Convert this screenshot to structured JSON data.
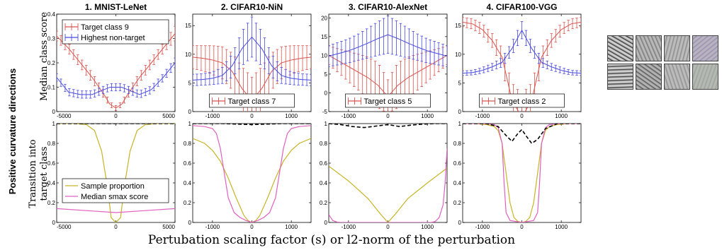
{
  "side_label": "Positive curvature directions",
  "top_ylabel": "Median class score",
  "bottom_ylabel_line1": "Transition into",
  "bottom_ylabel_line2": "target class",
  "xlabel": "Pertubation scaling factor (s) or l2-norm of the perturbation",
  "colors": {
    "target": "#d9534f",
    "nontarget": "#4a4ae0",
    "sample": "#c8b428",
    "smax": "#e060c0",
    "black": "#000000"
  },
  "thumbnails": [
    {
      "name": "mnist-direction-1",
      "bg": "#cfcfcf",
      "tone": "#333333"
    },
    {
      "name": "cifar10-nin-direction-1",
      "bg": "#b9b9b9",
      "tone": "#777777"
    },
    {
      "name": "cifar10-alexnet-direction-1",
      "bg": "#bdbdbd",
      "tone": "#8a8a8a"
    },
    {
      "name": "cifar100-vgg-direction-1",
      "bg": "#b8b4c0",
      "tone": "#9a8fb0"
    },
    {
      "name": "mnist-direction-2",
      "bg": "#cfcfcf",
      "tone": "#3a3a3a"
    },
    {
      "name": "cifar10-nin-direction-2",
      "bg": "#b3b3b3",
      "tone": "#555555"
    },
    {
      "name": "cifar10-alexnet-direction-2",
      "bg": "#bcbcbc",
      "tone": "#8e8e8e"
    },
    {
      "name": "cifar100-vgg-direction-2",
      "bg": "#b6b8b4",
      "tone": "#9aa59a"
    }
  ],
  "chart_data": [
    {
      "type": "line",
      "panel": "top",
      "title": "1. MNIST-LeNet",
      "xlim": [
        -5000,
        5000
      ],
      "ylim": [
        0,
        0.4
      ],
      "xticks": [
        "-5000",
        "0",
        "5000"
      ],
      "yticks": [
        "0",
        "0.1",
        "0.2",
        "0.3",
        "0.4"
      ],
      "legend": {
        "entries": [
          "Target class 9",
          "Highest non-target"
        ],
        "placement": "top-left"
      },
      "x": [
        -5000,
        -4000,
        -3000,
        -2000,
        -1000,
        -500,
        0,
        500,
        1000,
        2000,
        3000,
        4000,
        5000
      ],
      "series": [
        {
          "name": "Target class 9",
          "role": "target",
          "mean": [
            0.31,
            0.26,
            0.2,
            0.14,
            0.07,
            0.03,
            0.015,
            0.03,
            0.07,
            0.14,
            0.2,
            0.26,
            0.32
          ],
          "err": [
            0.02,
            0.02,
            0.02,
            0.02,
            0.015,
            0.01,
            0.01,
            0.01,
            0.015,
            0.02,
            0.02,
            0.02,
            0.03
          ]
        },
        {
          "name": "Highest non-target",
          "role": "nontarget",
          "mean": [
            0.14,
            0.08,
            0.07,
            0.07,
            0.09,
            0.1,
            0.1,
            0.1,
            0.09,
            0.07,
            0.09,
            0.14,
            0.2
          ],
          "err": [
            0.015,
            0.015,
            0.015,
            0.015,
            0.015,
            0.015,
            0.015,
            0.015,
            0.015,
            0.015,
            0.015,
            0.015,
            0.02
          ]
        }
      ]
    },
    {
      "type": "line",
      "panel": "top",
      "title": "2. CIFAR10-NiN",
      "xlim": [
        -1500,
        1500
      ],
      "ylim": [
        0,
        17
      ],
      "xticks": [
        "-1000",
        "0",
        "1000"
      ],
      "yticks": [
        "0",
        "5",
        "10",
        "15"
      ],
      "legend": {
        "entries": [
          "Target class 7"
        ],
        "placement": "bottom-center"
      },
      "x": [
        -1500,
        -1250,
        -1000,
        -750,
        -500,
        -250,
        0,
        250,
        500,
        750,
        1000,
        1250,
        1500
      ],
      "series": [
        {
          "name": "Target class 7",
          "role": "target",
          "mean": [
            9.5,
            9.3,
            9,
            8.5,
            7,
            4,
            2,
            4,
            7,
            8.5,
            9,
            9.3,
            9.5
          ],
          "err": [
            2,
            2.2,
            2.5,
            2.8,
            3.2,
            3.8,
            4,
            3.8,
            3.2,
            2.8,
            2.5,
            2.2,
            2
          ]
        },
        {
          "name": "",
          "role": "nontarget",
          "mean": [
            5.5,
            5.6,
            5.8,
            6.3,
            8,
            11,
            13,
            11,
            8,
            6.3,
            5.8,
            5.6,
            5.5
          ],
          "err": [
            1,
            1,
            1.1,
            1.4,
            2,
            3,
            3.5,
            3,
            2,
            1.4,
            1.1,
            1,
            1
          ]
        }
      ]
    },
    {
      "type": "line",
      "panel": "top",
      "title": "3. CIFAR10-AlexNet",
      "xlim": [
        -1500,
        1500
      ],
      "ylim": [
        -5,
        21
      ],
      "xticks": [
        "-1000",
        "0",
        "1000"
      ],
      "yticks": [
        "-5",
        "0",
        "5",
        "10",
        "15",
        "20"
      ],
      "legend": {
        "entries": [
          "Target class 5"
        ],
        "placement": "bottom-center"
      },
      "x": [
        -1500,
        -1250,
        -1000,
        -750,
        -500,
        -250,
        0,
        250,
        500,
        750,
        1000,
        1250,
        1500
      ],
      "series": [
        {
          "name": "Target class 5",
          "role": "target",
          "mean": [
            10,
            8.5,
            7,
            5.5,
            4,
            2,
            -1,
            2,
            4,
            5.5,
            7,
            8.5,
            10
          ],
          "err": [
            2.5,
            3.2,
            4,
            4.8,
            5.5,
            6,
            4.5,
            6,
            5.5,
            4.8,
            4,
            3.2,
            2.5
          ]
        },
        {
          "name": "",
          "role": "nontarget",
          "mean": [
            9.8,
            10.5,
            11.2,
            12.2,
            13.3,
            14.5,
            15.5,
            14.5,
            13.3,
            12.2,
            11.2,
            10.5,
            9.8
          ],
          "err": [
            2.8,
            3,
            3.2,
            3.5,
            4,
            4.5,
            5,
            4.5,
            4,
            3.5,
            3.2,
            3,
            2.8
          ]
        }
      ]
    },
    {
      "type": "line",
      "panel": "top",
      "title": "4. CIFAR100-VGG",
      "xlim": [
        -1500,
        1500
      ],
      "ylim": [
        0,
        17
      ],
      "xticks": [
        "-1000",
        "0",
        "1000"
      ],
      "yticks": [
        "0",
        "5",
        "10",
        "15"
      ],
      "legend": {
        "entries": [
          "Target class 2"
        ],
        "placement": "bottom-center"
      },
      "x": [
        -1500,
        -1250,
        -1000,
        -750,
        -500,
        -250,
        0,
        250,
        500,
        750,
        1000,
        1250,
        1500
      ],
      "series": [
        {
          "name": "Target class 2",
          "role": "target",
          "mean": [
            15.6,
            15.3,
            14.3,
            12.4,
            9.5,
            2,
            -1,
            2,
            9.5,
            12.4,
            14.3,
            15.3,
            15.6
          ],
          "err": [
            0.8,
            0.9,
            1,
            1.2,
            1.6,
            3,
            4,
            3,
            1.6,
            1.2,
            1,
            0.9,
            0.8
          ]
        },
        {
          "name": "",
          "role": "nontarget",
          "mean": [
            6.7,
            6.8,
            7.2,
            7.8,
            8.6,
            11,
            14.2,
            11,
            8.6,
            7.8,
            7.2,
            6.8,
            6.7
          ],
          "err": [
            0.4,
            0.4,
            0.5,
            0.6,
            0.8,
            1.1,
            1.5,
            1.1,
            0.8,
            0.6,
            0.5,
            0.4,
            0.4
          ]
        }
      ]
    },
    {
      "type": "line",
      "panel": "bottom",
      "title": "",
      "xlim": [
        -5000,
        5000
      ],
      "ylim": [
        0,
        1
      ],
      "xticks": [
        "-5000",
        "0",
        "5000"
      ],
      "yticks": [
        "0",
        "0.2",
        "0.4",
        "0.6",
        "0.8",
        "1"
      ],
      "legend": {
        "entries": [
          "Sample proportion",
          "Median smax score"
        ],
        "placement": "bottom-left"
      },
      "series": [
        {
          "name": "Sample proportion",
          "role": "sample",
          "x": [
            -5000,
            -3500,
            -2500,
            -1800,
            -1200,
            -700,
            -400,
            0,
            400,
            700,
            1200,
            1800,
            2500,
            3500,
            5000
          ],
          "y": [
            1,
            1,
            0.99,
            0.93,
            0.72,
            0.35,
            0.05,
            0,
            0.05,
            0.35,
            0.72,
            0.93,
            0.99,
            1,
            1
          ]
        },
        {
          "name": "Median smax score",
          "role": "smax",
          "x": [
            -5000,
            -2500,
            0,
            2500,
            5000
          ],
          "y": [
            0.14,
            0.12,
            0.1,
            0.12,
            0.14
          ]
        },
        {
          "name": "",
          "role": "black",
          "x": [
            -5000,
            0,
            5000
          ],
          "y": [
            1,
            1,
            1
          ]
        }
      ]
    },
    {
      "type": "line",
      "panel": "bottom",
      "title": "",
      "xlim": [
        -1500,
        1500
      ],
      "ylim": [
        0,
        1
      ],
      "xticks": [
        "-1000",
        "0",
        "1000"
      ],
      "yticks": [
        "0",
        "0.2",
        "0.4",
        "0.6",
        "0.8",
        "1"
      ],
      "series": [
        {
          "name": "",
          "role": "sample",
          "x": [
            -1500,
            -1200,
            -1000,
            -800,
            -600,
            -400,
            -200,
            -100,
            0,
            100,
            200,
            400,
            600,
            800,
            1000,
            1200,
            1500
          ],
          "y": [
            0.85,
            0.8,
            0.73,
            0.62,
            0.45,
            0.25,
            0.07,
            0.02,
            0,
            0.02,
            0.07,
            0.25,
            0.45,
            0.62,
            0.73,
            0.8,
            0.85
          ]
        },
        {
          "name": "",
          "role": "smax",
          "x": [
            -1500,
            -1200,
            -1000,
            -900,
            -800,
            -700,
            -600,
            -450,
            -300,
            -150,
            0,
            150,
            300,
            450,
            600,
            700,
            800,
            900,
            1000,
            1200,
            1500
          ],
          "y": [
            0.98,
            0.97,
            0.95,
            0.9,
            0.75,
            0.5,
            0.25,
            0.1,
            0.05,
            0.02,
            0,
            0.02,
            0.05,
            0.1,
            0.25,
            0.5,
            0.75,
            0.9,
            0.95,
            0.97,
            0.98
          ]
        },
        {
          "name": "",
          "role": "black",
          "x": [
            -1500,
            -750,
            0,
            750,
            1500
          ],
          "y": [
            1,
            1,
            0.99,
            1,
            1
          ]
        }
      ]
    },
    {
      "type": "line",
      "panel": "bottom",
      "title": "",
      "xlim": [
        -1500,
        1500
      ],
      "ylim": [
        0,
        1
      ],
      "xticks": [
        "-1000",
        "0",
        "1000"
      ],
      "yticks": [
        "0",
        "0.2",
        "0.4",
        "0.6",
        "0.8",
        "1"
      ],
      "series": [
        {
          "name": "",
          "role": "sample",
          "x": [
            -1500,
            -1000,
            -500,
            -200,
            0,
            200,
            500,
            1000,
            1500
          ],
          "y": [
            0.57,
            0.42,
            0.24,
            0.09,
            0,
            0.09,
            0.24,
            0.4,
            0.55
          ]
        },
        {
          "name": "",
          "role": "smax",
          "x": [
            -1500,
            -1400,
            -1300,
            -1200,
            -1100,
            -1000,
            0,
            1000,
            1100,
            1200,
            1300,
            1400,
            1450,
            1500
          ],
          "y": [
            0.08,
            0.02,
            0.005,
            0,
            0,
            0,
            0,
            0,
            0,
            0.01,
            0.05,
            0.18,
            0.4,
            0.75
          ]
        },
        {
          "name": "",
          "role": "black",
          "x": [
            -1500,
            -1200,
            -900,
            -600,
            -300,
            0,
            300,
            600,
            900,
            1200,
            1500
          ],
          "y": [
            1,
            0.99,
            0.97,
            0.96,
            0.975,
            0.99,
            0.97,
            0.985,
            0.995,
            1,
            1
          ]
        }
      ]
    },
    {
      "type": "line",
      "panel": "bottom",
      "title": "",
      "xlim": [
        -1500,
        1500
      ],
      "ylim": [
        0,
        1
      ],
      "xticks": [
        "-1000",
        "0",
        "1000"
      ],
      "yticks": [
        "0",
        "0.2",
        "0.4",
        "0.6",
        "0.8",
        "1"
      ],
      "series": [
        {
          "name": "",
          "role": "sample",
          "x": [
            -1500,
            -1200,
            -900,
            -700,
            -600,
            -500,
            -400,
            -300,
            -200,
            -100,
            0,
            100,
            200,
            300,
            400,
            500,
            600,
            700,
            900,
            1200,
            1500
          ],
          "y": [
            1,
            1,
            0.99,
            0.97,
            0.93,
            0.8,
            0.5,
            0.2,
            0.05,
            0.01,
            0,
            0.01,
            0.05,
            0.2,
            0.5,
            0.8,
            0.93,
            0.97,
            0.99,
            1,
            1
          ]
        },
        {
          "name": "",
          "role": "smax",
          "x": [
            -1500,
            -1000,
            -700,
            -600,
            -500,
            -450,
            -400,
            -300,
            0,
            300,
            400,
            450,
            500,
            600,
            700,
            1000,
            1500
          ],
          "y": [
            1,
            1,
            0.99,
            0.96,
            0.8,
            0.4,
            0.1,
            0.02,
            0,
            0.02,
            0.1,
            0.4,
            0.8,
            0.96,
            0.99,
            1,
            1
          ]
        },
        {
          "name": "",
          "role": "black",
          "x": [
            -1500,
            -900,
            -600,
            -400,
            -250,
            -100,
            0,
            100,
            250,
            400,
            600,
            900,
            1500
          ],
          "y": [
            1,
            1,
            0.97,
            0.88,
            0.82,
            0.9,
            0.94,
            0.88,
            0.8,
            0.84,
            0.95,
            1,
            1
          ]
        }
      ]
    }
  ]
}
